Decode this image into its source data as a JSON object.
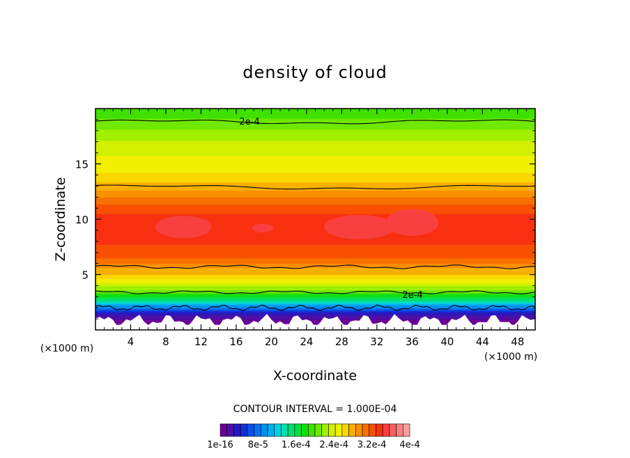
{
  "chart_data": {
    "type": "heatmap",
    "title": "density of cloud",
    "xlabel": "X-coordinate",
    "ylabel": "Z-coordinate",
    "x_unit": "(×1000 m)",
    "x_ticks": [
      4,
      8,
      12,
      16,
      20,
      24,
      28,
      32,
      36,
      40,
      44,
      48
    ],
    "y_ticks": [
      5,
      10,
      15
    ],
    "xlim": [
      0,
      50
    ],
    "ylim": [
      0,
      20
    ],
    "contour_interval_text": "CONTOUR INTERVAL = 1.000E-04",
    "contour_labels": [
      "2e-4",
      "2e-4"
    ],
    "colorbar_labels": [
      "1e-16",
      "8e-5",
      "1.6e-4",
      "2.4e-4",
      "3.2e-4",
      "4e-4"
    ],
    "colorbar_range": [
      1e-16,
      0.0004
    ],
    "colorbar_colors": [
      "#6a0096",
      "#4a10a8",
      "#2818c0",
      "#1030d8",
      "#0a50e8",
      "#0470f0",
      "#0090f0",
      "#00b0f0",
      "#00d0e0",
      "#00e0b0",
      "#00e070",
      "#00e040",
      "#10e010",
      "#40e000",
      "#70e800",
      "#a0f000",
      "#d0f000",
      "#f0f000",
      "#f8d800",
      "#f8b000",
      "#f89000",
      "#f87000",
      "#f85000",
      "#f83010",
      "#f84040",
      "#f86060",
      "#f88080",
      "#f8a0a0"
    ],
    "profile_z": [
      0.3,
      1.3,
      1.8,
      2.6,
      3.4,
      4.2,
      5.0,
      5.6,
      6.3,
      7.0,
      8.5,
      10.0,
      11.2,
      12.0,
      12.8,
      14.0,
      15.5,
      17.0,
      18.5,
      19.5
    ],
    "profile_density": [
      1e-16,
      2e-05,
      6e-05,
      0.00014,
      0.0002,
      0.00024,
      0.00027,
      0.000285,
      0.00031,
      0.000325,
      0.000332,
      0.000335,
      0.00032,
      0.0003,
      0.00028,
      0.00026,
      0.000245,
      0.00023,
      0.00021,
      0.000195
    ],
    "grid": false
  }
}
